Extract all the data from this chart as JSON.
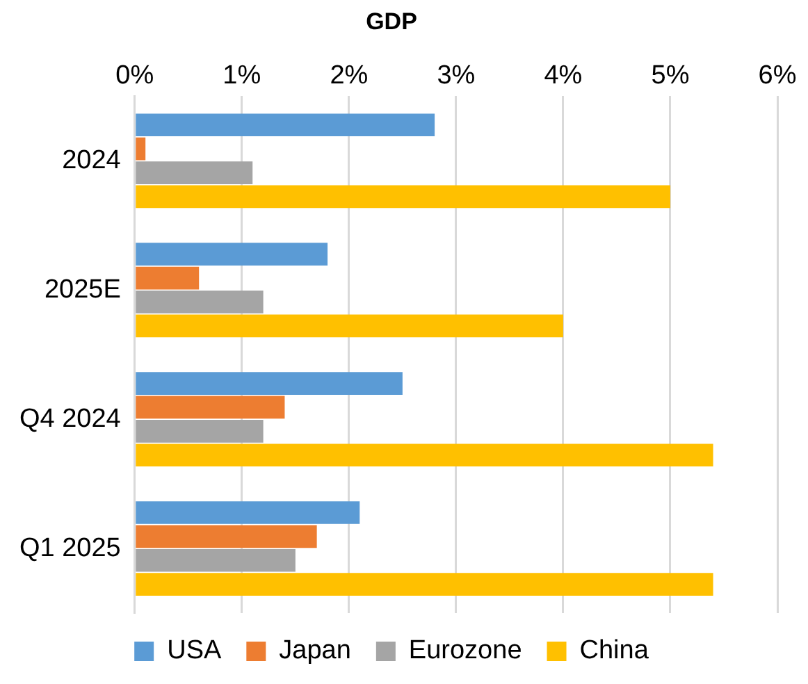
{
  "chart_data": {
    "type": "bar",
    "orientation": "horizontal",
    "title": "GDP",
    "categories": [
      "2024",
      "2025E",
      "Q4 2024",
      "Q1 2025"
    ],
    "series": [
      {
        "name": "USA",
        "color": "#5b9bd5",
        "values": [
          2.8,
          1.8,
          2.5,
          2.1
        ]
      },
      {
        "name": "Japan",
        "color": "#ed7d31",
        "values": [
          0.1,
          0.6,
          1.4,
          1.7
        ]
      },
      {
        "name": "Eurozone",
        "color": "#a5a5a5",
        "values": [
          1.1,
          1.2,
          1.2,
          1.5
        ]
      },
      {
        "name": "China",
        "color": "#ffc000",
        "values": [
          5.0,
          4.0,
          5.4,
          5.4
        ]
      }
    ],
    "xlim": [
      0,
      6
    ],
    "xticks": [
      {
        "value": 0,
        "label": "0%"
      },
      {
        "value": 1,
        "label": "1%"
      },
      {
        "value": 2,
        "label": "2%"
      },
      {
        "value": 3,
        "label": "3%"
      },
      {
        "value": 4,
        "label": "4%"
      },
      {
        "value": 5,
        "label": "5%"
      },
      {
        "value": 6,
        "label": "6%"
      }
    ],
    "grid": "x",
    "legend": "bottom"
  }
}
